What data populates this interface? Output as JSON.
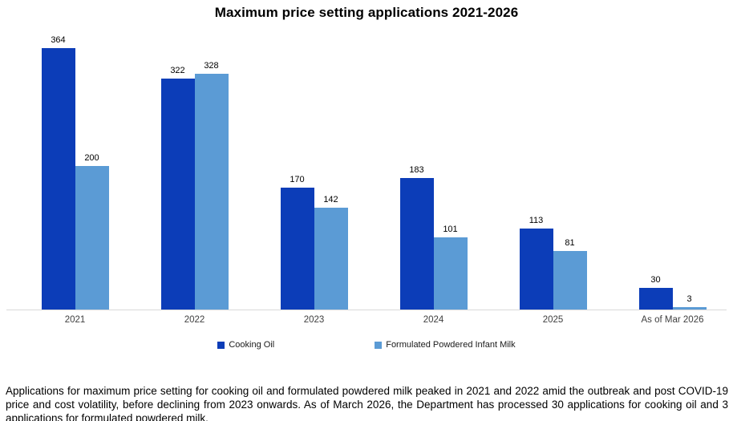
{
  "title": "Maximum price setting applications 2021-2026",
  "chart_data": {
    "type": "bar",
    "categories": [
      "2021",
      "2022",
      "2023",
      "2024",
      "2025",
      "As of Mar 2026"
    ],
    "series": [
      {
        "name": "Cooking Oil",
        "color": "#0C3DB8",
        "values": [
          364,
          322,
          170,
          183,
          113,
          30
        ]
      },
      {
        "name": "Formulated Powdered Infant Milk",
        "color": "#5B9BD5",
        "values": [
          200,
          328,
          142,
          101,
          81,
          3
        ]
      }
    ],
    "title": "Maximum price setting applications 2021-2026",
    "xlabel": "",
    "ylabel": "",
    "ylim": [
      0,
      364
    ],
    "data_labels": true,
    "grid": false,
    "legend_position": "bottom",
    "axis_line_color": "#D9D9D9"
  },
  "caption": "Applications for maximum price setting for cooking oil and formulated powdered milk peaked in 2021 and 2022 amid the outbreak and post COVID-19 price and cost volatility, before declining from 2023 onwards. As of March 2026, the Department has processed 30 applications for cooking oil and 3 applications for formulated powdered milk."
}
